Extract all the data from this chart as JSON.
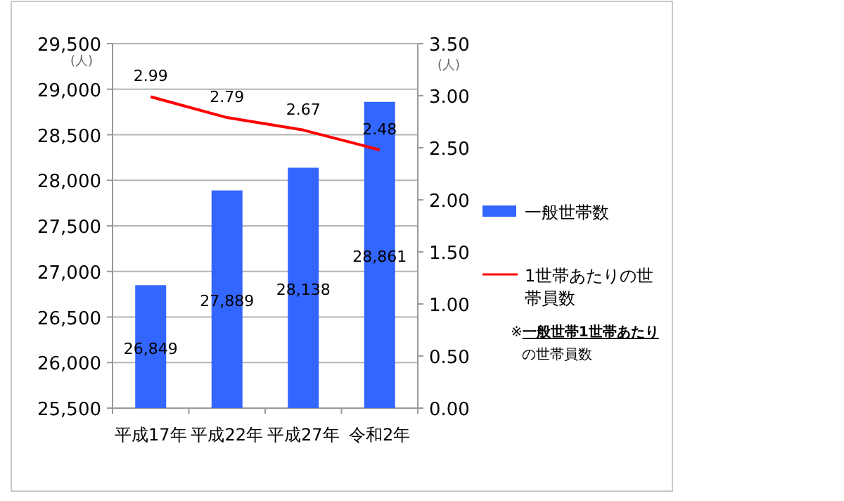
{
  "chart_data": {
    "type": "bar",
    "ylabel": "(人)",
    "y2label": "(人)",
    "categories": [
      "平成17年",
      "平成22年",
      "平成27年",
      "令和2年"
    ],
    "series": [
      {
        "name": "一般世帯数",
        "color": "#3366ff",
        "values": [
          26849,
          27889,
          28138,
          28861
        ],
        "value_labels": [
          "26,849",
          "27,889",
          "28,138",
          "28,861"
        ]
      },
      {
        "name": "1世帯あたりの世帯員数",
        "type": "line",
        "axis": "y2",
        "color": "#ff0000",
        "values": [
          2.99,
          2.79,
          2.67,
          2.48
        ],
        "value_labels": [
          "2.99",
          "2.79",
          "2.67",
          "2.48"
        ]
      }
    ],
    "ylim": [
      25500,
      29500
    ],
    "yticks": [
      {
        "value": 25500,
        "label": "25,500"
      },
      {
        "value": 26000,
        "label": "26,000"
      },
      {
        "value": 26500,
        "label": "26,500"
      },
      {
        "value": 27000,
        "label": "27,000"
      },
      {
        "value": 27500,
        "label": "27,500"
      },
      {
        "value": 28000,
        "label": "28,000"
      },
      {
        "value": 28500,
        "label": "28,500"
      },
      {
        "value": 29000,
        "label": "29,000"
      },
      {
        "value": 29500,
        "label": "29,500"
      }
    ],
    "y2lim": [
      0,
      3.5
    ],
    "y2ticks": [
      {
        "value": 0,
        "label": "0.00"
      },
      {
        "value": 0.5,
        "label": "0.50"
      },
      {
        "value": 1,
        "label": "1.00"
      },
      {
        "value": 1.5,
        "label": "1.50"
      },
      {
        "value": 2,
        "label": "2.00"
      },
      {
        "value": 2.5,
        "label": "2.50"
      },
      {
        "value": 3,
        "label": "3.00"
      },
      {
        "value": 3.5,
        "label": "3.50"
      }
    ],
    "grid": "y",
    "legend": "right",
    "marker": "none",
    "annotations": [
      "※**一般世帯1世帯あたり**の世帯員数"
    ]
  }
}
